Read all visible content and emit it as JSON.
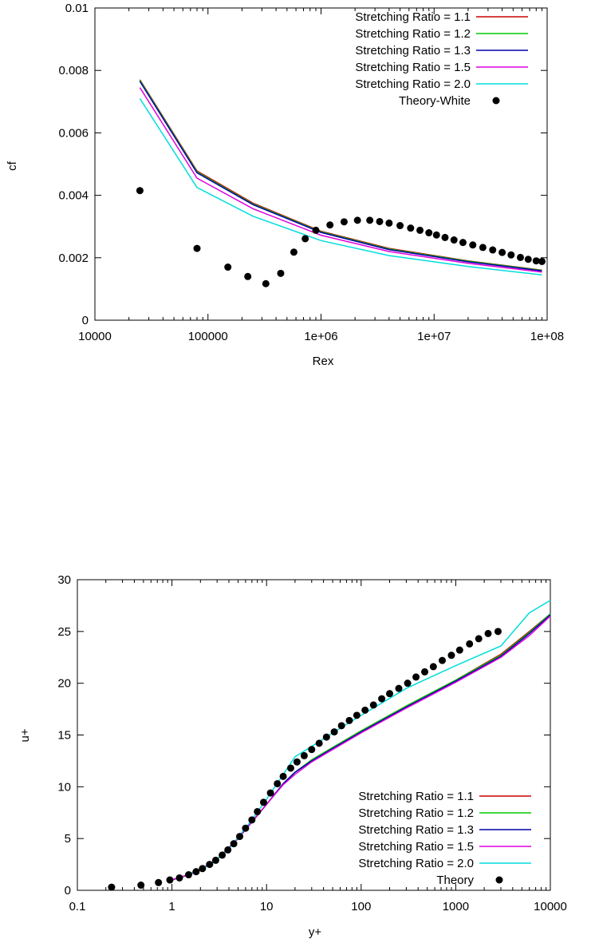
{
  "chart_data": [
    {
      "type": "line",
      "title": "",
      "xlabel": "Rex",
      "ylabel": "cf",
      "xscale": "log",
      "xlim": [
        10000,
        100000000
      ],
      "ylim": [
        0,
        0.01
      ],
      "xticks": [
        "10000",
        "100000",
        "1e+06",
        "1e+07",
        "1e+08"
      ],
      "yticks": [
        "0",
        "0.002",
        "0.004",
        "0.006",
        "0.008",
        "0.01"
      ],
      "grid": false,
      "legend_position": "top-right",
      "series": [
        {
          "name": "Stretching Ratio = 1.1",
          "color": "#cc0000",
          "x": [
            25000,
            80000,
            250000,
            1000000,
            4000000,
            20000000,
            90000000
          ],
          "y": [
            0.0077,
            0.00478,
            0.00375,
            0.00285,
            0.0023,
            0.0019,
            0.0016
          ]
        },
        {
          "name": "Stretching Ratio = 1.2",
          "color": "#00cc00",
          "x": [
            25000,
            80000,
            250000,
            1000000,
            4000000,
            20000000,
            90000000
          ],
          "y": [
            0.00768,
            0.00475,
            0.00372,
            0.00283,
            0.00228,
            0.00189,
            0.00159
          ]
        },
        {
          "name": "Stretching Ratio = 1.3",
          "color": "#0000aa",
          "x": [
            25000,
            80000,
            250000,
            1000000,
            4000000,
            20000000,
            90000000
          ],
          "y": [
            0.00765,
            0.00472,
            0.0037,
            0.00281,
            0.00226,
            0.00187,
            0.00158
          ]
        },
        {
          "name": "Stretching Ratio = 1.5",
          "color": "#dd00dd",
          "x": [
            25000,
            80000,
            250000,
            1000000,
            4000000,
            20000000,
            90000000
          ],
          "y": [
            0.00745,
            0.00455,
            0.00357,
            0.00272,
            0.0022,
            0.00182,
            0.00154
          ]
        },
        {
          "name": "Stretching Ratio = 2.0",
          "color": "#00dddd",
          "x": [
            25000,
            80000,
            250000,
            1000000,
            4000000,
            20000000,
            90000000
          ],
          "y": [
            0.0071,
            0.00425,
            0.00333,
            0.00255,
            0.00207,
            0.00172,
            0.00145
          ]
        },
        {
          "name": "Theory-White",
          "color": "#000000",
          "marker": "circle",
          "x": [
            25000,
            80000,
            150000,
            225000,
            325000,
            440000,
            575000,
            725000,
            900000,
            1200000,
            1600000,
            2100000,
            2700000,
            3300000,
            4000000,
            5000000,
            6200000,
            7500000,
            9000000,
            10500000,
            12500000,
            15000000,
            18000000,
            22000000,
            27000000,
            33000000,
            40000000,
            48000000,
            58000000,
            68000000,
            80000000,
            90000000
          ],
          "y": [
            0.00415,
            0.0023,
            0.0017,
            0.0014,
            0.00117,
            0.0015,
            0.00218,
            0.00261,
            0.00288,
            0.00305,
            0.00315,
            0.0032,
            0.0032,
            0.00316,
            0.00311,
            0.00303,
            0.00295,
            0.00288,
            0.0028,
            0.00273,
            0.00265,
            0.00257,
            0.00249,
            0.00241,
            0.00233,
            0.00225,
            0.00217,
            0.00209,
            0.00201,
            0.00195,
            0.0019,
            0.00188
          ]
        }
      ]
    },
    {
      "type": "line",
      "title": "",
      "xlabel": "y+",
      "ylabel": "u+",
      "xscale": "log",
      "xlim": [
        0.1,
        10000
      ],
      "ylim": [
        0,
        30
      ],
      "xticks": [
        "0.1",
        "1",
        "10",
        "100",
        "1000",
        "10000"
      ],
      "yticks": [
        "0",
        "5",
        "10",
        "15",
        "20",
        "25",
        "30"
      ],
      "grid": false,
      "legend_position": "bottom-right",
      "series": [
        {
          "name": "Stretching Ratio = 1.1",
          "color": "#cc0000",
          "x": [
            1,
            1.5,
            2,
            3,
            5,
            7,
            10,
            15,
            20,
            30,
            50,
            100,
            300,
            1000,
            3000,
            6000,
            10000
          ],
          "y": [
            1,
            1.5,
            2,
            3,
            5,
            6.6,
            8.3,
            10.3,
            11.4,
            12.6,
            13.8,
            15.4,
            17.8,
            20.3,
            22.8,
            25.0,
            26.7
          ]
        },
        {
          "name": "Stretching Ratio = 1.2",
          "color": "#00cc00",
          "x": [
            1,
            1.5,
            2,
            3,
            5,
            7,
            10,
            15,
            20,
            30,
            50,
            100,
            300,
            1000,
            3000,
            6000,
            10000
          ],
          "y": [
            1,
            1.5,
            2,
            3,
            5,
            6.6,
            8.3,
            10.3,
            11.4,
            12.6,
            13.8,
            15.4,
            17.8,
            20.3,
            22.7,
            24.9,
            26.7
          ]
        },
        {
          "name": "Stretching Ratio = 1.3",
          "color": "#0000aa",
          "x": [
            1,
            1.5,
            2,
            3,
            5,
            7,
            10,
            15,
            20,
            30,
            50,
            100,
            300,
            1000,
            3000,
            6000,
            10000
          ],
          "y": [
            1,
            1.5,
            2,
            3,
            5,
            6.6,
            8.3,
            10.3,
            11.4,
            12.5,
            13.7,
            15.3,
            17.7,
            20.2,
            22.6,
            24.8,
            26.6
          ]
        },
        {
          "name": "Stretching Ratio = 1.5",
          "color": "#dd00dd",
          "x": [
            1,
            1.5,
            2,
            3,
            5,
            7,
            10,
            15,
            20,
            30,
            50,
            100,
            300,
            1000,
            3000,
            6000,
            10000
          ],
          "y": [
            1,
            1.5,
            2,
            3,
            5,
            6.6,
            8.3,
            10.2,
            11.2,
            12.4,
            13.6,
            15.2,
            17.6,
            20.1,
            22.5,
            24.6,
            26.5
          ]
        },
        {
          "name": "Stretching Ratio = 2.0",
          "color": "#00dddd",
          "x": [
            1.5,
            2.5,
            4,
            7,
            10,
            15,
            20,
            30,
            50,
            100,
            300,
            1000,
            3000,
            6000,
            10000
          ],
          "y": [
            1.6,
            2.4,
            4.0,
            6.8,
            8.8,
            11.2,
            12.9,
            13.9,
            15.2,
            16.9,
            19.5,
            21.7,
            23.6,
            26.8,
            28.0
          ]
        },
        {
          "name": "Theory",
          "color": "#000000",
          "marker": "circle",
          "x": [
            0.23,
            0.47,
            0.72,
            0.95,
            1.2,
            1.5,
            1.8,
            2.1,
            2.5,
            2.9,
            3.4,
            3.9,
            4.5,
            5.2,
            6,
            7,
            8,
            9.3,
            11,
            13,
            15,
            18,
            21,
            25,
            30,
            36,
            43,
            52,
            62,
            75,
            90,
            110,
            135,
            165,
            200,
            250,
            310,
            380,
            470,
            580,
            720,
            900,
            1100,
            1400,
            1750,
            2200,
            2800
          ],
          "y": [
            0.3,
            0.5,
            0.75,
            1.0,
            1.2,
            1.5,
            1.8,
            2.1,
            2.5,
            2.9,
            3.4,
            3.9,
            4.5,
            5.2,
            6.0,
            6.8,
            7.6,
            8.5,
            9.4,
            10.3,
            11.0,
            11.8,
            12.4,
            13.0,
            13.6,
            14.2,
            14.8,
            15.3,
            15.9,
            16.4,
            16.9,
            17.4,
            17.9,
            18.5,
            19.0,
            19.5,
            20.0,
            20.6,
            21.1,
            21.6,
            22.2,
            22.7,
            23.2,
            23.8,
            24.3,
            24.8,
            25.0
          ]
        }
      ]
    }
  ]
}
